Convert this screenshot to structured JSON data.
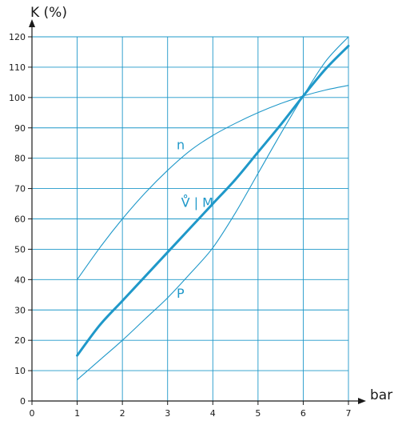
{
  "chart_data": {
    "type": "line",
    "ylabel": "K (%)",
    "xlabel": "bar",
    "xlim": [
      0,
      7
    ],
    "ylim": [
      0,
      120
    ],
    "x_ticks": [
      0,
      1,
      2,
      3,
      4,
      5,
      6,
      7
    ],
    "y_ticks": [
      0,
      10,
      20,
      30,
      40,
      50,
      60,
      70,
      80,
      90,
      100,
      110,
      120
    ],
    "grid": true,
    "colors": {
      "grid": "#1f98c9",
      "curve": "#1f98c9",
      "axis": "#1a1a1a"
    },
    "series": [
      {
        "name": "n",
        "label_at": [
          3.2,
          83
        ],
        "thick": false,
        "x": [
          1,
          1.5,
          2,
          2.5,
          3,
          3.5,
          4,
          4.5,
          5,
          5.5,
          6,
          6.5,
          7
        ],
        "y": [
          40,
          50.5,
          60,
          68.5,
          76,
          82.5,
          87.5,
          91.5,
          95,
          98,
          100.5,
          102.5,
          104
        ]
      },
      {
        "name": "V̊ | M",
        "label_at": [
          3.3,
          64
        ],
        "thick": true,
        "x": [
          1,
          1.5,
          2,
          2.5,
          3,
          3.5,
          4,
          4.5,
          5,
          5.5,
          6,
          6.5,
          7
        ],
        "y": [
          15,
          25,
          33,
          41,
          49,
          57,
          65,
          73,
          82,
          91,
          100.5,
          109.5,
          117
        ]
      },
      {
        "name": "P",
        "label_at": [
          3.2,
          34
        ],
        "thick": false,
        "x": [
          1,
          1.5,
          2,
          2.5,
          3,
          3.5,
          4,
          4.5,
          5,
          5.5,
          6,
          6.5,
          7
        ],
        "y": [
          7,
          13.5,
          20,
          27,
          34,
          42,
          50.5,
          62,
          75,
          88,
          100.5,
          112,
          120
        ]
      }
    ]
  }
}
